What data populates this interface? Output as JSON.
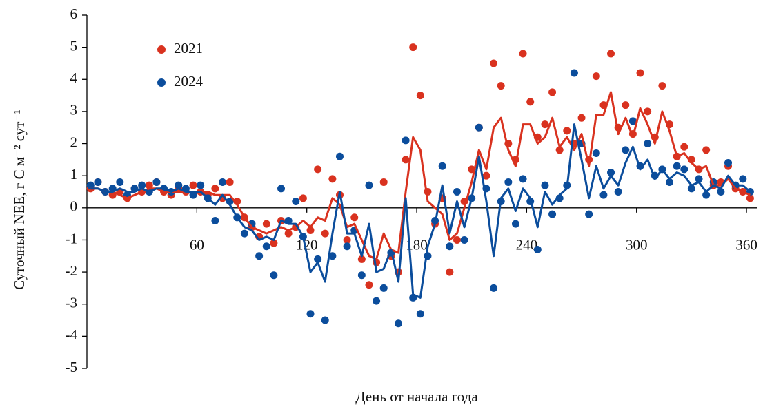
{
  "chart_data": {
    "type": "scatter-line",
    "ylabel": "Суточный NEE, г С м⁻² сут⁻¹",
    "xlabel": "День от начала года",
    "xlim": [
      0,
      366
    ],
    "xticks": [
      60,
      120,
      180,
      240,
      300,
      360
    ],
    "ylim": [
      -5,
      6
    ],
    "yticks": [
      -5,
      -4,
      -3,
      -2,
      -1,
      0,
      1,
      2,
      3,
      4,
      5,
      6
    ],
    "legend": "top-left",
    "x": [
      2,
      6,
      10,
      14,
      18,
      22,
      26,
      30,
      34,
      38,
      42,
      46,
      50,
      54,
      58,
      62,
      66,
      70,
      74,
      78,
      82,
      86,
      90,
      94,
      98,
      102,
      106,
      110,
      114,
      118,
      122,
      126,
      130,
      134,
      138,
      142,
      146,
      150,
      154,
      158,
      162,
      166,
      170,
      174,
      178,
      182,
      186,
      190,
      194,
      198,
      202,
      206,
      210,
      214,
      218,
      222,
      226,
      230,
      234,
      238,
      242,
      246,
      250,
      254,
      258,
      262,
      266,
      270,
      274,
      278,
      282,
      286,
      290,
      294,
      298,
      302,
      306,
      310,
      314,
      318,
      322,
      326,
      330,
      334,
      338,
      342,
      346,
      350,
      354,
      358,
      362
    ],
    "series": [
      {
        "name": "2021",
        "color": "#d9321f",
        "values": [
          0.6,
          0.8,
          0.5,
          0.4,
          0.5,
          0.3,
          0.6,
          0.5,
          0.7,
          0.8,
          0.5,
          0.4,
          0.6,
          0.5,
          0.7,
          0.5,
          0.4,
          0.6,
          0.3,
          0.8,
          0.2,
          -0.3,
          -0.6,
          -0.9,
          -0.5,
          -1.1,
          -0.4,
          -0.8,
          -0.6,
          0.3,
          -0.7,
          1.2,
          -0.8,
          0.9,
          0.4,
          -1.0,
          -0.3,
          -1.6,
          -2.4,
          -1.7,
          0.8,
          -1.5,
          -2.0,
          1.5,
          5.0,
          3.5,
          0.5,
          -0.5,
          0.3,
          -2.0,
          -1.0,
          0.2,
          1.2,
          2.5,
          1.0,
          4.5,
          3.8,
          2.0,
          1.5,
          4.8,
          3.3,
          2.2,
          2.6,
          3.6,
          1.8,
          2.4,
          2.0,
          2.8,
          1.5,
          4.1,
          3.2,
          4.8,
          2.5,
          3.2,
          2.3,
          4.2,
          3.0,
          2.2,
          3.8,
          2.6,
          1.6,
          1.9,
          1.5,
          1.2,
          1.8,
          0.7,
          0.8,
          1.3,
          0.6,
          0.5,
          0.3
        ],
        "line_values": [
          0.6,
          0.6,
          0.5,
          0.5,
          0.4,
          0.3,
          0.4,
          0.5,
          0.6,
          0.6,
          0.5,
          0.5,
          0.5,
          0.5,
          0.5,
          0.5,
          0.5,
          0.4,
          0.4,
          0.4,
          0.1,
          -0.3,
          -0.6,
          -0.7,
          -0.8,
          -0.7,
          -0.6,
          -0.7,
          -0.6,
          -0.4,
          -0.6,
          -0.3,
          -0.4,
          0.3,
          0.1,
          -0.6,
          -0.5,
          -1.0,
          -1.5,
          -1.6,
          -0.8,
          -1.3,
          -1.4,
          0.5,
          2.2,
          1.8,
          0.2,
          0.0,
          -0.2,
          -1.0,
          -0.8,
          0.0,
          0.8,
          1.8,
          1.2,
          2.5,
          2.8,
          1.8,
          1.3,
          2.6,
          2.6,
          2.0,
          2.2,
          2.8,
          1.9,
          2.2,
          1.8,
          2.3,
          1.3,
          2.9,
          2.9,
          3.6,
          2.3,
          2.8,
          2.2,
          3.1,
          2.6,
          2.0,
          3.0,
          2.4,
          1.6,
          1.7,
          1.4,
          1.2,
          1.3,
          0.7,
          0.7,
          0.9,
          0.6,
          0.5,
          0.4
        ]
      },
      {
        "name": "2024",
        "color": "#0b4d9c",
        "values": [
          0.7,
          0.8,
          0.5,
          0.6,
          0.8,
          0.4,
          0.6,
          0.7,
          0.5,
          0.8,
          0.6,
          0.5,
          0.7,
          0.6,
          0.4,
          0.7,
          0.3,
          -0.4,
          0.8,
          0.2,
          -0.3,
          -0.8,
          -0.5,
          -1.5,
          -1.2,
          -2.1,
          0.6,
          -0.4,
          0.2,
          -0.9,
          -3.3,
          -1.6,
          -3.5,
          -1.5,
          1.6,
          -1.2,
          -0.7,
          -2.1,
          0.7,
          -2.9,
          -2.5,
          -1.4,
          -3.6,
          2.1,
          -2.8,
          -3.3,
          -1.5,
          -0.4,
          1.3,
          -1.2,
          0.5,
          -1.0,
          0.3,
          2.5,
          0.6,
          -2.5,
          0.2,
          0.8,
          -0.5,
          0.9,
          0.2,
          -1.3,
          0.7,
          -0.2,
          0.3,
          0.7,
          4.2,
          2.0,
          -0.2,
          1.7,
          0.4,
          1.1,
          0.5,
          1.8,
          2.7,
          1.3,
          2.0,
          1.0,
          1.2,
          0.8,
          1.3,
          1.2,
          0.6,
          0.9,
          0.4,
          0.8,
          0.5,
          1.4,
          0.7,
          0.9,
          0.5
        ],
        "line_values": [
          0.6,
          0.6,
          0.5,
          0.5,
          0.6,
          0.5,
          0.5,
          0.6,
          0.5,
          0.6,
          0.6,
          0.5,
          0.6,
          0.5,
          0.5,
          0.5,
          0.3,
          0.1,
          0.4,
          0.1,
          -0.3,
          -0.6,
          -0.7,
          -1.0,
          -0.9,
          -1.0,
          -0.4,
          -0.5,
          -0.5,
          -0.9,
          -2.0,
          -1.7,
          -2.3,
          -0.8,
          0.5,
          -0.8,
          -0.8,
          -1.5,
          -0.5,
          -2.0,
          -1.9,
          -1.3,
          -2.3,
          0.3,
          -2.7,
          -2.8,
          -1.2,
          -0.5,
          0.7,
          -0.8,
          0.2,
          -0.6,
          0.3,
          1.6,
          0.2,
          -1.5,
          0.3,
          0.6,
          -0.1,
          0.6,
          0.3,
          -0.6,
          0.5,
          0.1,
          0.4,
          0.6,
          2.6,
          1.5,
          0.3,
          1.3,
          0.6,
          1.0,
          0.7,
          1.4,
          1.9,
          1.2,
          1.5,
          0.9,
          1.2,
          0.9,
          1.1,
          1.0,
          0.7,
          0.8,
          0.5,
          0.7,
          0.6,
          1.0,
          0.7,
          0.7,
          0.5
        ]
      }
    ]
  }
}
